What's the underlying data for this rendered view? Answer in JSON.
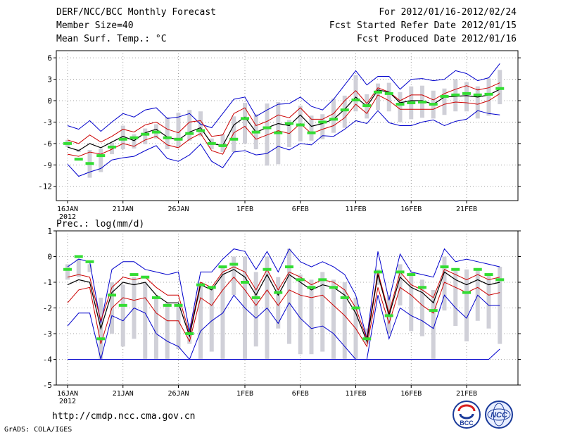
{
  "header": {
    "title": "DERF/NCC/BCC Monthly Forecast",
    "member_size": "Member Size=40",
    "variable": "Mean Surf. Temp.: °C",
    "forecast_period": "For 2012/01/16-2012/02/24",
    "start_date": "Fcst Started Refer Date 2012/01/15",
    "produced_date": "Fcst Produced Date 2012/01/16"
  },
  "footer": {
    "url": "http://cmdp.ncc.cma.gov.cn",
    "credit": "GrADS: COLA/IGES",
    "logo1_text": "BCC",
    "logo2_text": "NCC"
  },
  "colors": {
    "ensemble_range": "#0000cc",
    "spread": "#cc0000",
    "mean": "#000000",
    "bars": "#d0d0d8",
    "observation": "#33dd33",
    "grid": "#888888"
  },
  "chart_data": [
    {
      "type": "line",
      "name": "temperature",
      "ylabel": "",
      "ylim": [
        -14,
        7
      ],
      "yticks": [
        6,
        3,
        0,
        -3,
        -6,
        -9,
        -12
      ],
      "xlim": [
        0,
        40
      ],
      "xticks": [
        {
          "x": 0,
          "label": "16JAN",
          "sub": "2012"
        },
        {
          "x": 5,
          "label": "21JAN"
        },
        {
          "x": 10,
          "label": "26JAN"
        },
        {
          "x": 16,
          "label": "1FEB"
        },
        {
          "x": 21,
          "label": "6FEB"
        },
        {
          "x": 26,
          "label": "11FEB"
        },
        {
          "x": 31,
          "label": "16FEB"
        },
        {
          "x": 36,
          "label": "21FEB"
        }
      ],
      "x": [
        0,
        1,
        2,
        3,
        4,
        5,
        6,
        7,
        8,
        9,
        10,
        11,
        12,
        13,
        14,
        15,
        16,
        17,
        18,
        19,
        20,
        21,
        22,
        23,
        24,
        25,
        26,
        27,
        28,
        29,
        30,
        31,
        32,
        33,
        34,
        35,
        36,
        37,
        38,
        39
      ],
      "series": [
        {
          "name": "ensemble max",
          "role": "max",
          "values": [
            -3.5,
            -4,
            -2.8,
            -4.3,
            -3,
            -1.8,
            -2.3,
            -1.3,
            -1,
            -2.5,
            -2.3,
            -1.8,
            -3.3,
            -3.8,
            -1.8,
            0.2,
            0.5,
            -2.2,
            -1.3,
            -0.5,
            -0.4,
            0.5,
            -0.8,
            -1.3,
            0.2,
            2.2,
            4.2,
            2.2,
            3.4,
            3.4,
            1.6,
            3,
            3.1,
            2.8,
            3,
            4.2,
            3.8,
            2.8,
            3.2,
            5.2
          ]
        },
        {
          "name": "upper spread",
          "role": "hi",
          "values": [
            -5.5,
            -6,
            -4.8,
            -5.8,
            -5,
            -4,
            -4.4,
            -3.4,
            -3,
            -4,
            -4.5,
            -3,
            -2.8,
            -5,
            -4.8,
            -1.8,
            -1,
            -3.5,
            -2.9,
            -2,
            -2.4,
            -1,
            -2.6,
            -2.6,
            -1.8,
            0,
            1.4,
            -0.4,
            1.8,
            1.2,
            0,
            0.8,
            0.8,
            0.1,
            1,
            1.6,
            2.1,
            1.5,
            1.8,
            2.5
          ]
        },
        {
          "name": "ensemble mean",
          "role": "mean",
          "values": [
            -6.5,
            -7,
            -6,
            -6.6,
            -5.8,
            -5,
            -5.6,
            -4.5,
            -4,
            -5.1,
            -5.5,
            -4.4,
            -3.8,
            -6,
            -6.3,
            -3.4,
            -2.3,
            -4.4,
            -3.8,
            -3.2,
            -3.5,
            -2,
            -3.6,
            -3.2,
            -2.6,
            -1.2,
            0.5,
            -0.8,
            1.5,
            1.2,
            -0.3,
            0,
            0,
            -0.5,
            0.5,
            0.6,
            0.7,
            0.5,
            0.8,
            1.6
          ]
        },
        {
          "name": "lower spread",
          "role": "lo",
          "values": [
            -7.5,
            -7.8,
            -7.2,
            -7.5,
            -6.8,
            -6,
            -6.4,
            -5.5,
            -5,
            -6.2,
            -6.6,
            -5.4,
            -4.6,
            -7,
            -7.5,
            -4.5,
            -3.6,
            -5.4,
            -4.8,
            -4.2,
            -4.6,
            -3.2,
            -4.6,
            -4,
            -3.5,
            -2.4,
            -0.5,
            -1.8,
            0.8,
            0,
            -1.2,
            -1.2,
            -1.2,
            -1.2,
            -0.5,
            -0.2,
            -0.3,
            -0.5,
            0,
            1
          ]
        },
        {
          "name": "ensemble min",
          "role": "min",
          "values": [
            -8.9,
            -10.6,
            -10,
            -9.5,
            -8.3,
            -8,
            -7.8,
            -7,
            -6.3,
            -8.1,
            -8.5,
            -7.6,
            -6.1,
            -8.5,
            -9.4,
            -7.2,
            -7,
            -7.6,
            -7.4,
            -6.4,
            -6.9,
            -6,
            -6.2,
            -4.9,
            -5,
            -4,
            -2.8,
            -3.2,
            -1.4,
            -3.1,
            -3.5,
            -3.5,
            -3,
            -2.7,
            -3.5,
            -2.9,
            -2.6,
            -1.4,
            -1.8,
            -2
          ]
        }
      ],
      "bars": {
        "name": "interquartile range",
        "low": [
          -6.5,
          -7.2,
          -10.8,
          -10,
          -7.5,
          -6.8,
          -6.7,
          -6.1,
          -5.3,
          -6.8,
          -6.5,
          -5.6,
          -5,
          -6.8,
          -7.2,
          -7.2,
          -6,
          -6.8,
          -9.1,
          -8.9,
          -6.5,
          -5.7,
          -5.6,
          -5.4,
          -4.5,
          -3.8,
          -1.5,
          -2.5,
          -1.3,
          -1.5,
          -3,
          -2.6,
          -2.4,
          -2.5,
          -2,
          -1.5,
          -1.5,
          -2.5,
          -2.1,
          -0.5
        ],
        "high": [
          -5.5,
          -6.8,
          -6.9,
          -6.7,
          -5.9,
          -3.5,
          -4.7,
          -3.9,
          -3.3,
          -2.3,
          -1.7,
          -1.3,
          -1.5,
          -5.3,
          -4.7,
          -2.2,
          -0.3,
          -1.9,
          -0.4,
          -0.2,
          -2.7,
          -0.7,
          -2.1,
          -1.9,
          0.3,
          0.7,
          3.6,
          0.9,
          2.4,
          2.5,
          1.2,
          2,
          2.1,
          1.4,
          1.7,
          3,
          2.6,
          2,
          3.1,
          4.3
        ]
      },
      "observations": [
        {
          "x": 0,
          "y": -6.0
        },
        {
          "x": 1,
          "y": -8.2
        },
        {
          "x": 2,
          "y": -8.8
        },
        {
          "x": 3,
          "y": -7.7
        },
        {
          "x": 4,
          "y": -6.5
        },
        {
          "x": 5,
          "y": -5.4
        },
        {
          "x": 6,
          "y": -5.2
        },
        {
          "x": 7,
          "y": -4.7
        },
        {
          "x": 8,
          "y": -4.4
        },
        {
          "x": 9,
          "y": -5.2
        },
        {
          "x": 10,
          "y": -5.4
        },
        {
          "x": 11,
          "y": -4.6
        },
        {
          "x": 12,
          "y": -4.2
        },
        {
          "x": 13,
          "y": -6.0
        },
        {
          "x": 14,
          "y": -6.3
        },
        {
          "x": 15,
          "y": -5.4
        },
        {
          "x": 16,
          "y": -2.5
        },
        {
          "x": 17,
          "y": -4.4
        },
        {
          "x": 18,
          "y": -3.8
        },
        {
          "x": 19,
          "y": -4.5
        },
        {
          "x": 20,
          "y": -3.2
        },
        {
          "x": 21,
          "y": -3.4
        },
        {
          "x": 22,
          "y": -4.5
        },
        {
          "x": 23,
          "y": -3.0
        },
        {
          "x": 24,
          "y": -2.6
        },
        {
          "x": 25,
          "y": -1.3
        },
        {
          "x": 26,
          "y": 0.1
        },
        {
          "x": 27,
          "y": -0.7
        },
        {
          "x": 28,
          "y": 1.2
        },
        {
          "x": 29,
          "y": 1.0
        },
        {
          "x": 30,
          "y": -0.5
        },
        {
          "x": 31,
          "y": -0.3
        },
        {
          "x": 32,
          "y": -0.2
        },
        {
          "x": 33,
          "y": -0.5
        },
        {
          "x": 34,
          "y": 0.6
        },
        {
          "x": 35,
          "y": 0.8
        },
        {
          "x": 36,
          "y": 1.0
        },
        {
          "x": 37,
          "y": 0.8
        },
        {
          "x": 38,
          "y": 0.9
        },
        {
          "x": 39,
          "y": 1.7
        }
      ]
    },
    {
      "type": "line",
      "name": "precipitation",
      "ylabel": "Prec.: log(mm/d)",
      "ylim": [
        -5,
        1
      ],
      "yticks": [
        1,
        0,
        -1,
        -2,
        -3,
        -4,
        -5
      ],
      "xlim": [
        0,
        40
      ],
      "xticks": [
        {
          "x": 0,
          "label": "16JAN",
          "sub": "2012"
        },
        {
          "x": 5,
          "label": "21JAN"
        },
        {
          "x": 10,
          "label": "26JAN"
        },
        {
          "x": 16,
          "label": "1FEB"
        },
        {
          "x": 21,
          "label": "6FEB"
        },
        {
          "x": 26,
          "label": "11FEB"
        },
        {
          "x": 31,
          "label": "16FEB"
        },
        {
          "x": 36,
          "label": "21FEB"
        }
      ],
      "x": [
        0,
        1,
        2,
        3,
        4,
        5,
        6,
        7,
        8,
        9,
        10,
        11,
        12,
        13,
        14,
        15,
        16,
        17,
        18,
        19,
        20,
        21,
        22,
        23,
        24,
        25,
        26,
        27,
        28,
        29,
        30,
        31,
        32,
        33,
        34,
        35,
        36,
        37,
        38,
        39
      ],
      "series": [
        {
          "name": "ensemble max",
          "role": "max",
          "values": [
            -0.4,
            -0.1,
            -0.2,
            -2.6,
            -0.5,
            -0.2,
            -0.2,
            -0.5,
            -0.6,
            -0.7,
            -0.6,
            -2.9,
            -0.6,
            -0.6,
            -0.1,
            0.3,
            0.2,
            -0.5,
            0.2,
            -0.6,
            0.3,
            -0.2,
            -0.4,
            -0.2,
            -0.4,
            -0.7,
            -1.5,
            -3.2,
            0.2,
            -1.7,
            0.1,
            -0.6,
            -0.7,
            -0.8,
            0.3,
            -0.2,
            -0.1,
            -0.2,
            -0.3,
            -0.4
          ]
        },
        {
          "name": "upper spread",
          "role": "hi",
          "values": [
            -0.8,
            -0.7,
            -0.8,
            -2.5,
            -1.2,
            -0.8,
            -0.9,
            -0.8,
            -1.2,
            -1.5,
            -1.5,
            -3,
            -1,
            -1.2,
            -0.6,
            -0.4,
            -0.6,
            -1.3,
            -0.5,
            -1.3,
            -0.6,
            -0.8,
            -1.1,
            -0.9,
            -1,
            -1.3,
            -2,
            -3.2,
            -0.6,
            -2.2,
            -0.6,
            -1.1,
            -1.3,
            -1.6,
            -0.5,
            -0.7,
            -0.9,
            -0.7,
            -0.9,
            -0.8
          ]
        },
        {
          "name": "ensemble mean",
          "role": "mean",
          "values": [
            -1.1,
            -0.9,
            -1,
            -2.8,
            -1.4,
            -1,
            -1.1,
            -1,
            -1.5,
            -1.8,
            -1.8,
            -3.1,
            -1.1,
            -1.3,
            -0.7,
            -0.5,
            -0.8,
            -1.5,
            -0.7,
            -1.5,
            -0.7,
            -1,
            -1.3,
            -1.1,
            -1.2,
            -1.5,
            -2.2,
            -3.3,
            -0.7,
            -2.3,
            -0.8,
            -1.2,
            -1.4,
            -1.8,
            -0.6,
            -0.9,
            -1.1,
            -0.9,
            -1.1,
            -1
          ]
        },
        {
          "name": "lower spread",
          "role": "lo",
          "values": [
            -1.8,
            -1.3,
            -1.2,
            -3.4,
            -2,
            -1.6,
            -1.7,
            -1.6,
            -2.2,
            -2.5,
            -2.5,
            -3.3,
            -1.6,
            -1.9,
            -1.3,
            -0.8,
            -1.3,
            -1.9,
            -1.3,
            -1.9,
            -1.3,
            -1.5,
            -1.6,
            -1.5,
            -1.9,
            -2.3,
            -2.8,
            -3.5,
            -1.2,
            -2.6,
            -1.2,
            -1.5,
            -1.9,
            -2.2,
            -1,
            -1.2,
            -1.4,
            -1.2,
            -1.5,
            -1.4
          ]
        },
        {
          "name": "ensemble min",
          "role": "min",
          "values": [
            -2.7,
            -2.2,
            -2.2,
            -4,
            -2.3,
            -2.5,
            -2,
            -2.2,
            -3,
            -3.3,
            -3.5,
            -4,
            -2.9,
            -2.5,
            -2.2,
            -1.5,
            -2,
            -2.4,
            -2,
            -2.6,
            -1.8,
            -2.4,
            -2.8,
            -2.7,
            -3,
            -3.5,
            -4,
            -4,
            -1.5,
            -3.2,
            -2,
            -2.3,
            -2.5,
            -2.8,
            -1.5,
            -2,
            -2.4,
            -1.5,
            -1.9,
            -1.9
          ]
        },
        {
          "name": "minimum limit",
          "role": "floor",
          "values": [
            -4,
            -4,
            -4,
            -4,
            -4,
            -4,
            -4,
            -4,
            -4,
            -4,
            -4,
            -4,
            -4,
            -4,
            -4,
            -4,
            -4,
            -4,
            -4,
            -4,
            -4,
            -4,
            -4,
            -4,
            -4,
            -4,
            -4,
            -4,
            -4,
            -4,
            -4,
            -4,
            -4,
            -4,
            -4,
            -4,
            -4,
            -4,
            -4,
            -3.6
          ]
        }
      ],
      "bars": {
        "name": "interquartile range",
        "low": [
          -0.9,
          -0.8,
          -0.6,
          -4,
          -3,
          -3.5,
          -3.2,
          -4,
          -4,
          -4,
          -3.6,
          -3.4,
          -4,
          -3.7,
          -4,
          -1.5,
          -4,
          -3.5,
          -4,
          -2.8,
          -3.4,
          -3.8,
          -3.8,
          -3.7,
          -4,
          -4,
          -4,
          -3.4,
          -1.1,
          -3,
          -1.9,
          -2.9,
          -3.1,
          -4,
          -2.1,
          -2.7,
          -3.3,
          -2.5,
          -2.8,
          -3.4
        ],
        "high": [
          -0.3,
          -0.1,
          -0.3,
          -1.6,
          -1,
          -1.1,
          -0.8,
          -1,
          -1.6,
          -1.8,
          -1.9,
          -2.6,
          -1,
          -1.2,
          -0.4,
          0,
          0,
          -0.6,
          0,
          -0.8,
          0.3,
          -0.7,
          -0.9,
          -0.6,
          -0.9,
          -1,
          -1.6,
          -2.8,
          -0.5,
          -1.5,
          -0.3,
          -0.6,
          -0.9,
          -1.3,
          0,
          -0.5,
          -0.5,
          -0.5,
          -0.7,
          -0.4
        ]
      },
      "observations": [
        {
          "x": 0,
          "y": -0.5
        },
        {
          "x": 1,
          "y": 0.0
        },
        {
          "x": 2,
          "y": -0.2
        },
        {
          "x": 3,
          "y": -3.2
        },
        {
          "x": 4,
          "y": -1.5
        },
        {
          "x": 5,
          "y": -1.9
        },
        {
          "x": 6,
          "y": -0.7
        },
        {
          "x": 7,
          "y": -0.8
        },
        {
          "x": 8,
          "y": -1.6
        },
        {
          "x": 9,
          "y": -1.9
        },
        {
          "x": 10,
          "y": -1.9
        },
        {
          "x": 11,
          "y": -3.0
        },
        {
          "x": 12,
          "y": -1.1
        },
        {
          "x": 13,
          "y": -1.2
        },
        {
          "x": 14,
          "y": -0.4
        },
        {
          "x": 15,
          "y": -0.3
        },
        {
          "x": 16,
          "y": -1.0
        },
        {
          "x": 17,
          "y": -1.6
        },
        {
          "x": 18,
          "y": -0.5
        },
        {
          "x": 19,
          "y": -1.4
        },
        {
          "x": 20,
          "y": -0.4
        },
        {
          "x": 21,
          "y": -0.9
        },
        {
          "x": 22,
          "y": -1.2
        },
        {
          "x": 23,
          "y": -0.9
        },
        {
          "x": 24,
          "y": -1.2
        },
        {
          "x": 25,
          "y": -1.6
        },
        {
          "x": 26,
          "y": -2.0
        },
        {
          "x": 27,
          "y": -3.2
        },
        {
          "x": 28,
          "y": -0.6
        },
        {
          "x": 29,
          "y": -2.3
        },
        {
          "x": 30,
          "y": -0.6
        },
        {
          "x": 31,
          "y": -0.7
        },
        {
          "x": 32,
          "y": -1.2
        },
        {
          "x": 33,
          "y": -2.1
        },
        {
          "x": 34,
          "y": -0.4
        },
        {
          "x": 35,
          "y": -0.5
        },
        {
          "x": 36,
          "y": -1.4
        },
        {
          "x": 37,
          "y": -0.5
        },
        {
          "x": 38,
          "y": -0.7
        },
        {
          "x": 39,
          "y": -0.9
        }
      ]
    }
  ]
}
